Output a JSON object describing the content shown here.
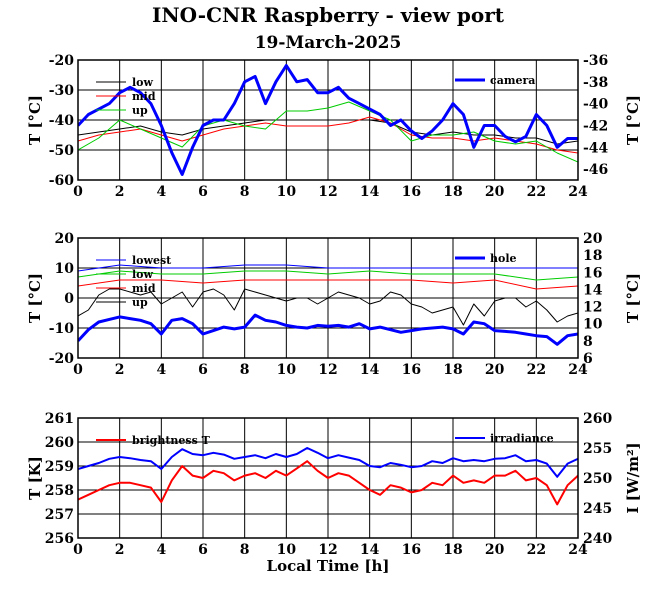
{
  "title": "INO-CNR Raspberry - view port",
  "subtitle": "19-March-2025",
  "chart_data": [
    {
      "type": "line",
      "xlabel": "",
      "ylabel": "T [°C]",
      "ylabel_right": "T [°C]",
      "xlim": [
        0,
        24
      ],
      "ylim": [
        -60,
        -20
      ],
      "ylim_right": [
        -47,
        -36
      ],
      "x_ticks": [
        "0",
        "2",
        "4",
        "6",
        "8",
        "10",
        "12",
        "14",
        "16",
        "18",
        "20",
        "22",
        "24"
      ],
      "y_ticks": [
        "-20",
        "-30",
        "-40",
        "-50",
        "-60"
      ],
      "y_ticks_right": [
        "-36",
        "-38",
        "-40",
        "-42",
        "-44",
        "-46"
      ],
      "grid": true,
      "series": [
        {
          "name": "low",
          "color": "#000000",
          "axis": "left",
          "width": 1,
          "x": [
            0,
            1,
            2,
            3,
            4,
            5,
            6,
            7,
            8,
            9,
            10,
            11,
            12,
            13,
            14,
            15,
            16,
            17,
            18,
            19,
            20,
            21,
            22,
            23,
            24
          ],
          "y": [
            -45,
            -44,
            -43,
            -42,
            -44,
            -45,
            -43,
            -42,
            -41,
            -40,
            -40,
            -40,
            -40,
            -40,
            -40,
            -41,
            -44,
            -45,
            -44,
            -45,
            -45,
            -46,
            -46,
            -48,
            -47
          ]
        },
        {
          "name": "mid",
          "color": "#ff0000",
          "axis": "left",
          "width": 1,
          "x": [
            0,
            1,
            2,
            3,
            4,
            5,
            6,
            7,
            8,
            9,
            10,
            11,
            12,
            13,
            14,
            15,
            16,
            17,
            18,
            19,
            20,
            21,
            22,
            23,
            24
          ],
          "y": [
            -47,
            -45,
            -44,
            -43,
            -45,
            -47,
            -45,
            -43,
            -42,
            -41,
            -42,
            -42,
            -42,
            -41,
            -39,
            -41,
            -45,
            -46,
            -46,
            -47,
            -46,
            -47,
            -48,
            -50,
            -51
          ]
        },
        {
          "name": "up",
          "color": "#00cc00",
          "axis": "left",
          "width": 1,
          "x": [
            0,
            1,
            2,
            3,
            4,
            5,
            6,
            7,
            8,
            9,
            10,
            11,
            12,
            13,
            14,
            15,
            16,
            17,
            18,
            19,
            20,
            21,
            22,
            23,
            24
          ],
          "y": [
            -50,
            -46,
            -40,
            -43,
            -46,
            -49,
            -42,
            -40,
            -42,
            -43,
            -37,
            -37,
            -36,
            -34,
            -37,
            -40,
            -47,
            -45,
            -45,
            -44,
            -47,
            -48,
            -47,
            -51,
            -54
          ]
        },
        {
          "name": "camera",
          "color": "#0000ff",
          "axis": "right",
          "width": 3,
          "x": [
            0,
            0.5,
            1,
            1.5,
            2,
            2.5,
            3,
            3.5,
            4,
            4.5,
            5,
            5.5,
            6,
            6.5,
            7,
            7.5,
            8,
            8.5,
            9,
            9.5,
            10,
            10.5,
            11,
            11.5,
            12,
            12.5,
            13,
            13.5,
            14,
            14.5,
            15,
            15.5,
            16,
            16.5,
            17,
            17.5,
            18,
            18.5,
            19,
            19.5,
            20,
            20.5,
            21,
            21.5,
            22,
            22.5,
            23,
            23.5,
            24
          ],
          "y": [
            -42,
            -41,
            -40.5,
            -40,
            -39,
            -38.5,
            -39,
            -40,
            -42,
            -44.5,
            -46.5,
            -44,
            -42,
            -41.5,
            -41.5,
            -40,
            -38,
            -37.5,
            -40,
            -38,
            -36.5,
            -38,
            -37.8,
            -39,
            -39,
            -38.5,
            -39.5,
            -40,
            -40.5,
            -41,
            -42,
            -41.5,
            -42.5,
            -43.2,
            -42.5,
            -41.5,
            -40,
            -41,
            -44,
            -42,
            -42,
            -43,
            -43.5,
            -43,
            -41,
            -42,
            -44,
            -43.2,
            -43.2
          ]
        }
      ]
    },
    {
      "type": "line",
      "xlabel": "",
      "ylabel": "T [°C]",
      "ylabel_right": "T [°C]",
      "xlim": [
        0,
        24
      ],
      "ylim": [
        -20,
        20
      ],
      "ylim_right": [
        6,
        20
      ],
      "x_ticks": [
        "0",
        "2",
        "4",
        "6",
        "8",
        "10",
        "12",
        "14",
        "16",
        "18",
        "20",
        "22",
        "24"
      ],
      "y_ticks": [
        "20",
        "10",
        "0",
        "-10",
        "-20"
      ],
      "y_ticks_right": [
        "20",
        "18",
        "16",
        "14",
        "12",
        "10",
        "8",
        "6"
      ],
      "grid": true,
      "series": [
        {
          "name": "lowest",
          "color": "#0000ff",
          "axis": "left",
          "width": 1,
          "x": [
            0,
            2,
            4,
            6,
            8,
            10,
            12,
            14,
            16,
            18,
            20,
            22,
            24
          ],
          "y": [
            9,
            11,
            10,
            10,
            11,
            11,
            10,
            10,
            10,
            10,
            10,
            10,
            10
          ]
        },
        {
          "name": "low",
          "color": "#00cc00",
          "axis": "left",
          "width": 1,
          "x": [
            0,
            2,
            4,
            6,
            8,
            10,
            12,
            14,
            16,
            18,
            20,
            22,
            24
          ],
          "y": [
            7,
            9,
            8,
            8,
            9,
            9,
            8,
            9,
            8,
            8,
            8,
            6,
            7
          ]
        },
        {
          "name": "mid",
          "color": "#ff0000",
          "axis": "left",
          "width": 1,
          "x": [
            0,
            2,
            4,
            6,
            8,
            10,
            12,
            14,
            16,
            18,
            20,
            22,
            24
          ],
          "y": [
            4,
            6,
            6,
            5,
            6,
            6,
            6,
            6,
            6,
            5,
            6,
            3,
            4
          ]
        },
        {
          "name": "up",
          "color": "#000000",
          "axis": "left",
          "width": 1,
          "x": [
            0,
            0.5,
            1,
            1.5,
            2,
            2.5,
            3,
            3.5,
            4,
            4.5,
            5,
            5.5,
            6,
            6.5,
            7,
            7.5,
            8,
            8.5,
            9,
            9.5,
            10,
            10.5,
            11,
            11.5,
            12,
            12.5,
            13,
            13.5,
            14,
            14.5,
            15,
            15.5,
            16,
            16.5,
            17,
            17.5,
            18,
            18.5,
            19,
            19.5,
            20,
            20.5,
            21,
            21.5,
            22,
            22.5,
            23,
            23.5,
            24
          ],
          "y": [
            -6,
            -4,
            1,
            3,
            3,
            2,
            1,
            2,
            -2,
            0,
            2,
            -3,
            2,
            3,
            1,
            -4,
            3,
            2,
            1,
            0,
            -1,
            0,
            0,
            -2,
            0,
            2,
            1,
            0,
            -2,
            -1,
            2,
            1,
            -2,
            -3,
            -5,
            -4,
            -3,
            -9,
            -2,
            -6,
            -1,
            0,
            0,
            -3,
            -1,
            -4,
            -8,
            -6,
            -5
          ]
        },
        {
          "name": "hole",
          "color": "#0000ff",
          "axis": "right",
          "width": 3,
          "x": [
            0,
            0.5,
            1,
            1.5,
            2,
            2.5,
            3,
            3.5,
            4,
            4.5,
            5,
            5.5,
            6,
            6.5,
            7,
            7.5,
            8,
            8.5,
            9,
            9.5,
            10,
            10.5,
            11,
            11.5,
            12,
            12.5,
            13,
            13.5,
            14,
            14.5,
            15,
            15.5,
            16,
            16.5,
            17,
            17.5,
            18,
            18.5,
            19,
            19.5,
            20,
            20.5,
            21,
            21.5,
            22,
            22.5,
            23,
            23.5,
            24
          ],
          "y": [
            8,
            9.3,
            10.2,
            10.5,
            10.8,
            10.6,
            10.4,
            10,
            8.8,
            10.4,
            10.6,
            10,
            8.8,
            9.2,
            9.6,
            9.4,
            9.6,
            11,
            10.4,
            10.2,
            9.8,
            9.6,
            9.5,
            9.8,
            9.7,
            9.8,
            9.6,
            10,
            9.4,
            9.6,
            9.3,
            9,
            9.2,
            9.4,
            9.5,
            9.6,
            9.4,
            8.8,
            10.2,
            10,
            9.2,
            9.1,
            9,
            8.8,
            8.6,
            8.5,
            7.6,
            8.6,
            8.8
          ]
        }
      ]
    },
    {
      "type": "line",
      "xlabel": "Local Time [h]",
      "ylabel": "T [K]",
      "ylabel_right": "I [W/m²]",
      "xlim": [
        0,
        24
      ],
      "ylim": [
        256,
        261
      ],
      "ylim_right": [
        240,
        260
      ],
      "x_ticks": [
        "0",
        "2",
        "4",
        "6",
        "8",
        "10",
        "12",
        "14",
        "16",
        "18",
        "20",
        "22",
        "24"
      ],
      "y_ticks": [
        "261",
        "260",
        "259",
        "258",
        "257",
        "256"
      ],
      "y_ticks_right": [
        "260",
        "255",
        "250",
        "245",
        "240"
      ],
      "grid": true,
      "series": [
        {
          "name": "brightness T",
          "color": "#ff0000",
          "axis": "left",
          "width": 2,
          "x": [
            0,
            0.5,
            1,
            1.5,
            2,
            2.5,
            3,
            3.5,
            4,
            4.5,
            5,
            5.5,
            6,
            6.5,
            7,
            7.5,
            8,
            8.5,
            9,
            9.5,
            10,
            10.5,
            11,
            11.5,
            12,
            12.5,
            13,
            13.5,
            14,
            14.5,
            15,
            15.5,
            16,
            16.5,
            17,
            17.5,
            18,
            18.5,
            19,
            19.5,
            20,
            20.5,
            21,
            21.5,
            22,
            22.5,
            23,
            23.5,
            24
          ],
          "y": [
            257.6,
            257.8,
            258,
            258.2,
            258.3,
            258.3,
            258.2,
            258.1,
            257.5,
            258.4,
            259,
            258.6,
            258.5,
            258.8,
            258.7,
            258.4,
            258.6,
            258.7,
            258.5,
            258.8,
            258.6,
            258.9,
            259.2,
            258.8,
            258.5,
            258.7,
            258.6,
            258.3,
            258,
            257.8,
            258.2,
            258.1,
            257.9,
            258,
            258.3,
            258.2,
            258.6,
            258.3,
            258.4,
            258.3,
            258.6,
            258.6,
            258.8,
            258.4,
            258.5,
            258.2,
            257.4,
            258.2,
            258.6
          ]
        },
        {
          "name": "irradiance",
          "color": "#0000ff",
          "axis": "right",
          "width": 2,
          "x": [
            0,
            0.5,
            1,
            1.5,
            2,
            2.5,
            3,
            3.5,
            4,
            4.5,
            5,
            5.5,
            6,
            6.5,
            7,
            7.5,
            8,
            8.5,
            9,
            9.5,
            10,
            10.5,
            11,
            11.5,
            12,
            12.5,
            13,
            13.5,
            14,
            14.5,
            15,
            15.5,
            16,
            16.5,
            17,
            17.5,
            18,
            18.5,
            19,
            19.5,
            20,
            20.5,
            21,
            21.5,
            22,
            22.5,
            23,
            23.5,
            24
          ],
          "y": [
            251.5,
            252,
            252.5,
            253.2,
            253.5,
            253.3,
            253,
            252.8,
            251.5,
            253.5,
            254.8,
            254,
            253.8,
            254.2,
            253.9,
            253.2,
            253.5,
            253.8,
            253.3,
            254,
            253.5,
            254,
            255,
            254.2,
            253.3,
            253.8,
            253.4,
            253,
            252,
            251.8,
            252.5,
            252.2,
            251.8,
            252,
            252.8,
            252.5,
            253.3,
            252.8,
            253,
            252.8,
            253.2,
            253.3,
            253.8,
            252.8,
            253,
            252.4,
            250.2,
            252.4,
            253.2
          ]
        }
      ]
    }
  ]
}
